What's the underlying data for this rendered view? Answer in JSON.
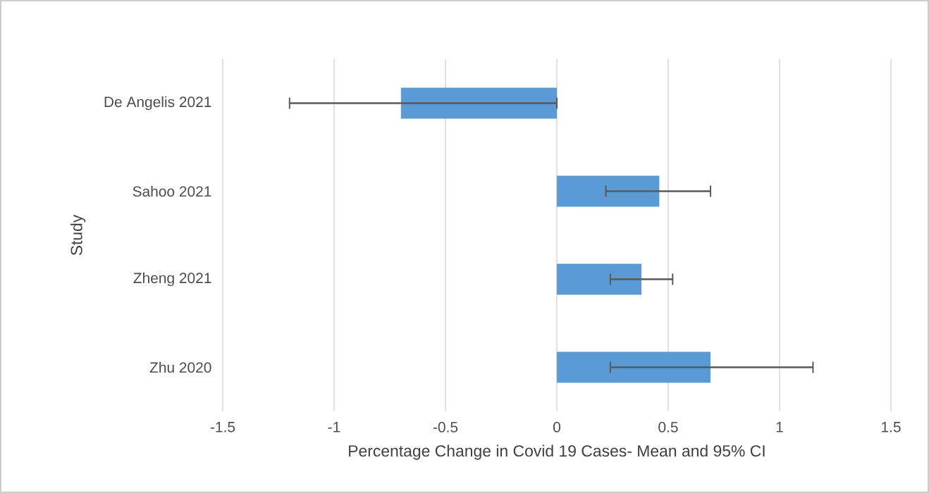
{
  "chart_data": {
    "type": "bar",
    "orientation": "horizontal",
    "xlabel": "Percentage Change in Covid 19 Cases- Mean and 95% CI",
    "ylabel": "Study",
    "categories": [
      "De Angelis 2021",
      "Sahoo 2021",
      "Zheng 2021",
      "Zhu 2020"
    ],
    "values": [
      -0.7,
      0.46,
      0.38,
      0.69
    ],
    "errors": [
      [
        -1.2,
        0
      ],
      [
        0.22,
        0.69
      ],
      [
        0.24,
        0.52
      ],
      [
        0.24,
        1.15
      ]
    ],
    "color": "#5b9bd5",
    "xlim": [
      -1.5,
      1.5
    ],
    "xticks": [
      -1.5,
      -1,
      -0.5,
      0,
      0.5,
      1,
      1.5
    ],
    "grid": "x"
  }
}
